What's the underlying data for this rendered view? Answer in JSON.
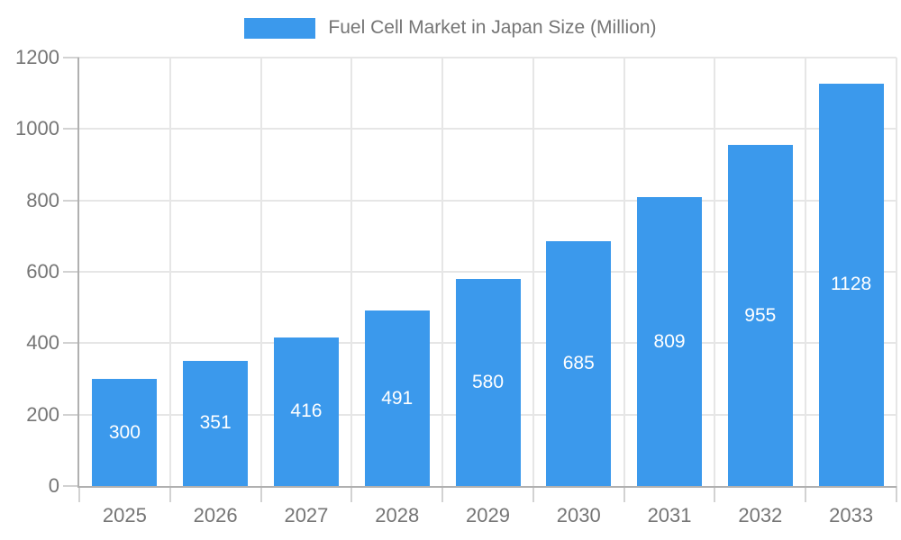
{
  "chart_data": {
    "type": "bar",
    "title": "Fuel Cell Market in Japan Size (Million)",
    "categories": [
      "2025",
      "2026",
      "2027",
      "2028",
      "2029",
      "2030",
      "2031",
      "2032",
      "2033"
    ],
    "values": [
      300,
      351,
      416,
      491,
      580,
      685,
      809,
      955,
      1128
    ],
    "xlabel": "",
    "ylabel": "",
    "ylim": [
      0,
      1200
    ],
    "ytick_step": 200,
    "yticks": [
      0,
      200,
      400,
      600,
      800,
      1000,
      1200
    ],
    "grid": true,
    "legend_position": "top",
    "bar_color": "#3b99ec",
    "value_label_color": "#ffffff",
    "axis_text_color": "#757575"
  }
}
